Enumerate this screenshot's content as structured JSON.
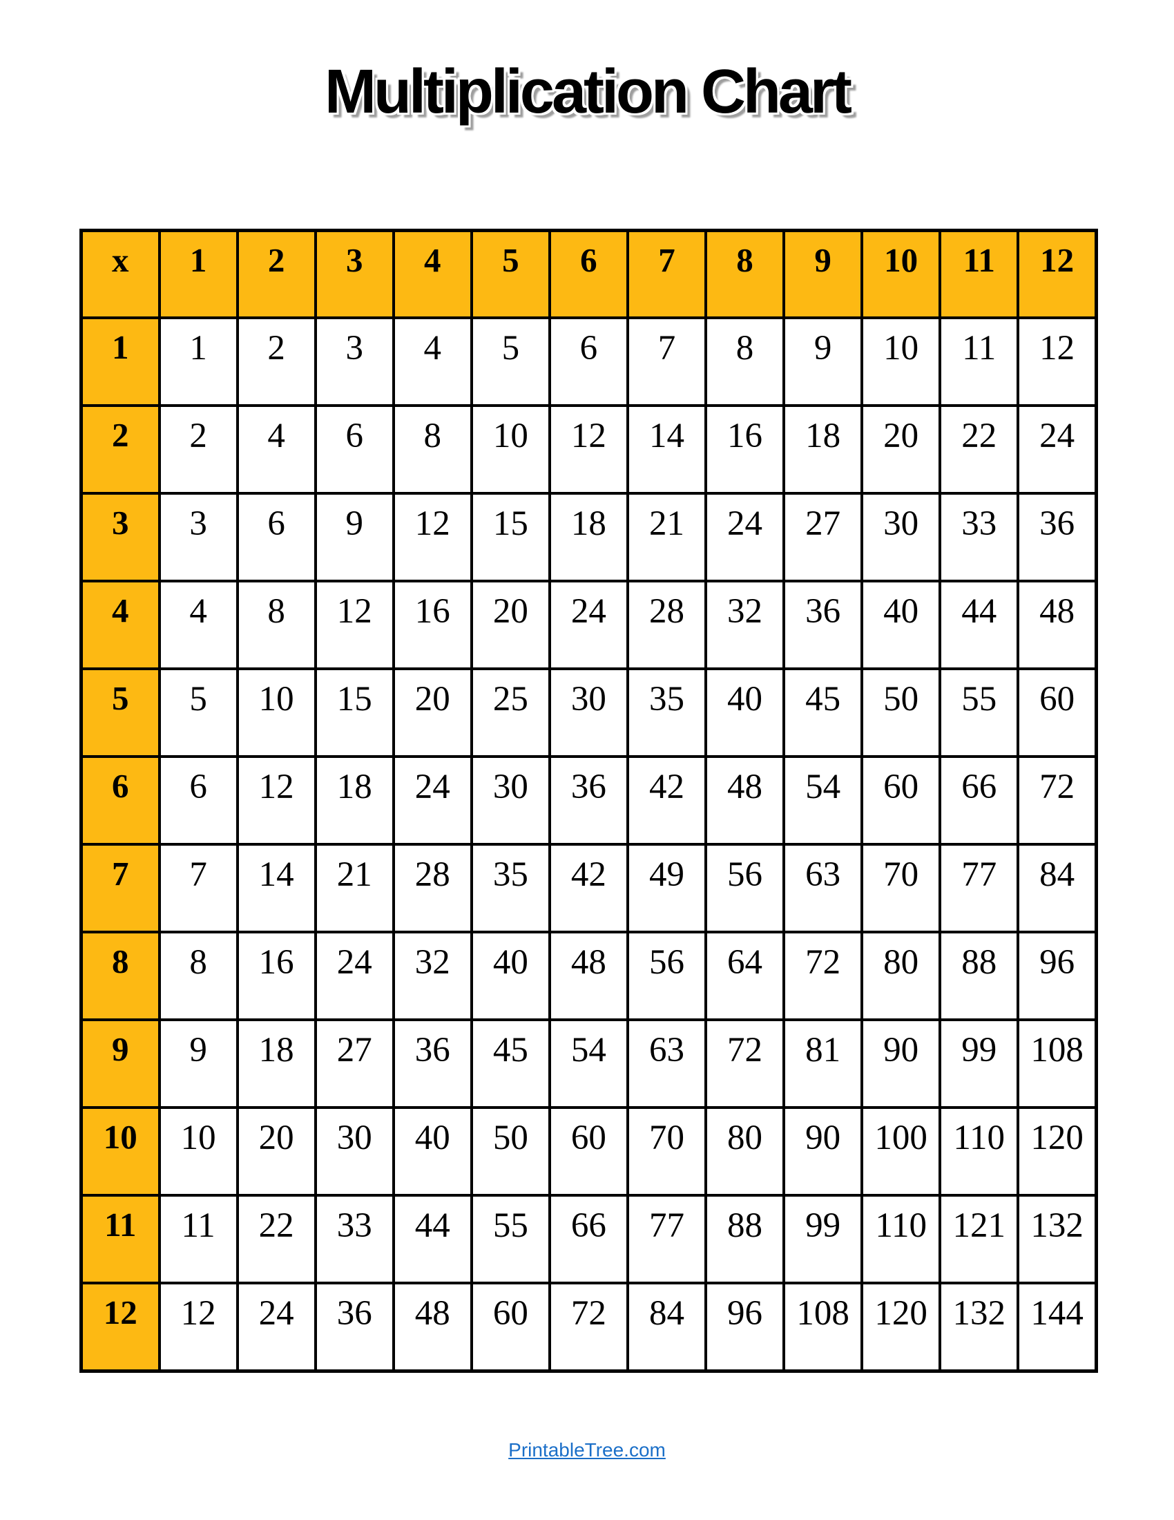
{
  "page": {
    "background": "#FFFFFF"
  },
  "styles": {
    "header_bg": "#FDB913",
    "border_color": "#000000",
    "cell_bg": "#FFFFFF",
    "title_color": "#000000",
    "shadow_color": "#9E9E9E",
    "link_color": "#1B6FC8"
  },
  "chart_data": {
    "type": "table",
    "title": "Multiplication Chart",
    "corner_label": "x",
    "columns": [
      "1",
      "2",
      "3",
      "4",
      "5",
      "6",
      "7",
      "8",
      "9",
      "10",
      "11",
      "12"
    ],
    "row_headers": [
      "1",
      "2",
      "3",
      "4",
      "5",
      "6",
      "7",
      "8",
      "9",
      "10",
      "11",
      "12"
    ],
    "rows": [
      [
        1,
        2,
        3,
        4,
        5,
        6,
        7,
        8,
        9,
        10,
        11,
        12
      ],
      [
        2,
        4,
        6,
        8,
        10,
        12,
        14,
        16,
        18,
        20,
        22,
        24
      ],
      [
        3,
        6,
        9,
        12,
        15,
        18,
        21,
        24,
        27,
        30,
        33,
        36
      ],
      [
        4,
        8,
        12,
        16,
        20,
        24,
        28,
        32,
        36,
        40,
        44,
        48
      ],
      [
        5,
        10,
        15,
        20,
        25,
        30,
        35,
        40,
        45,
        50,
        55,
        60
      ],
      [
        6,
        12,
        18,
        24,
        30,
        36,
        42,
        48,
        54,
        60,
        66,
        72
      ],
      [
        7,
        14,
        21,
        28,
        35,
        42,
        49,
        56,
        63,
        70,
        77,
        84
      ],
      [
        8,
        16,
        24,
        32,
        40,
        48,
        56,
        64,
        72,
        80,
        88,
        96
      ],
      [
        9,
        18,
        27,
        36,
        45,
        54,
        63,
        72,
        81,
        90,
        99,
        108
      ],
      [
        10,
        20,
        30,
        40,
        50,
        60,
        70,
        80,
        90,
        100,
        110,
        120
      ],
      [
        11,
        22,
        33,
        44,
        55,
        66,
        77,
        88,
        99,
        110,
        121,
        132
      ],
      [
        12,
        24,
        36,
        48,
        60,
        72,
        84,
        96,
        108,
        120,
        132,
        144
      ]
    ]
  },
  "footer": {
    "link_label": "PrintableTree.com"
  }
}
